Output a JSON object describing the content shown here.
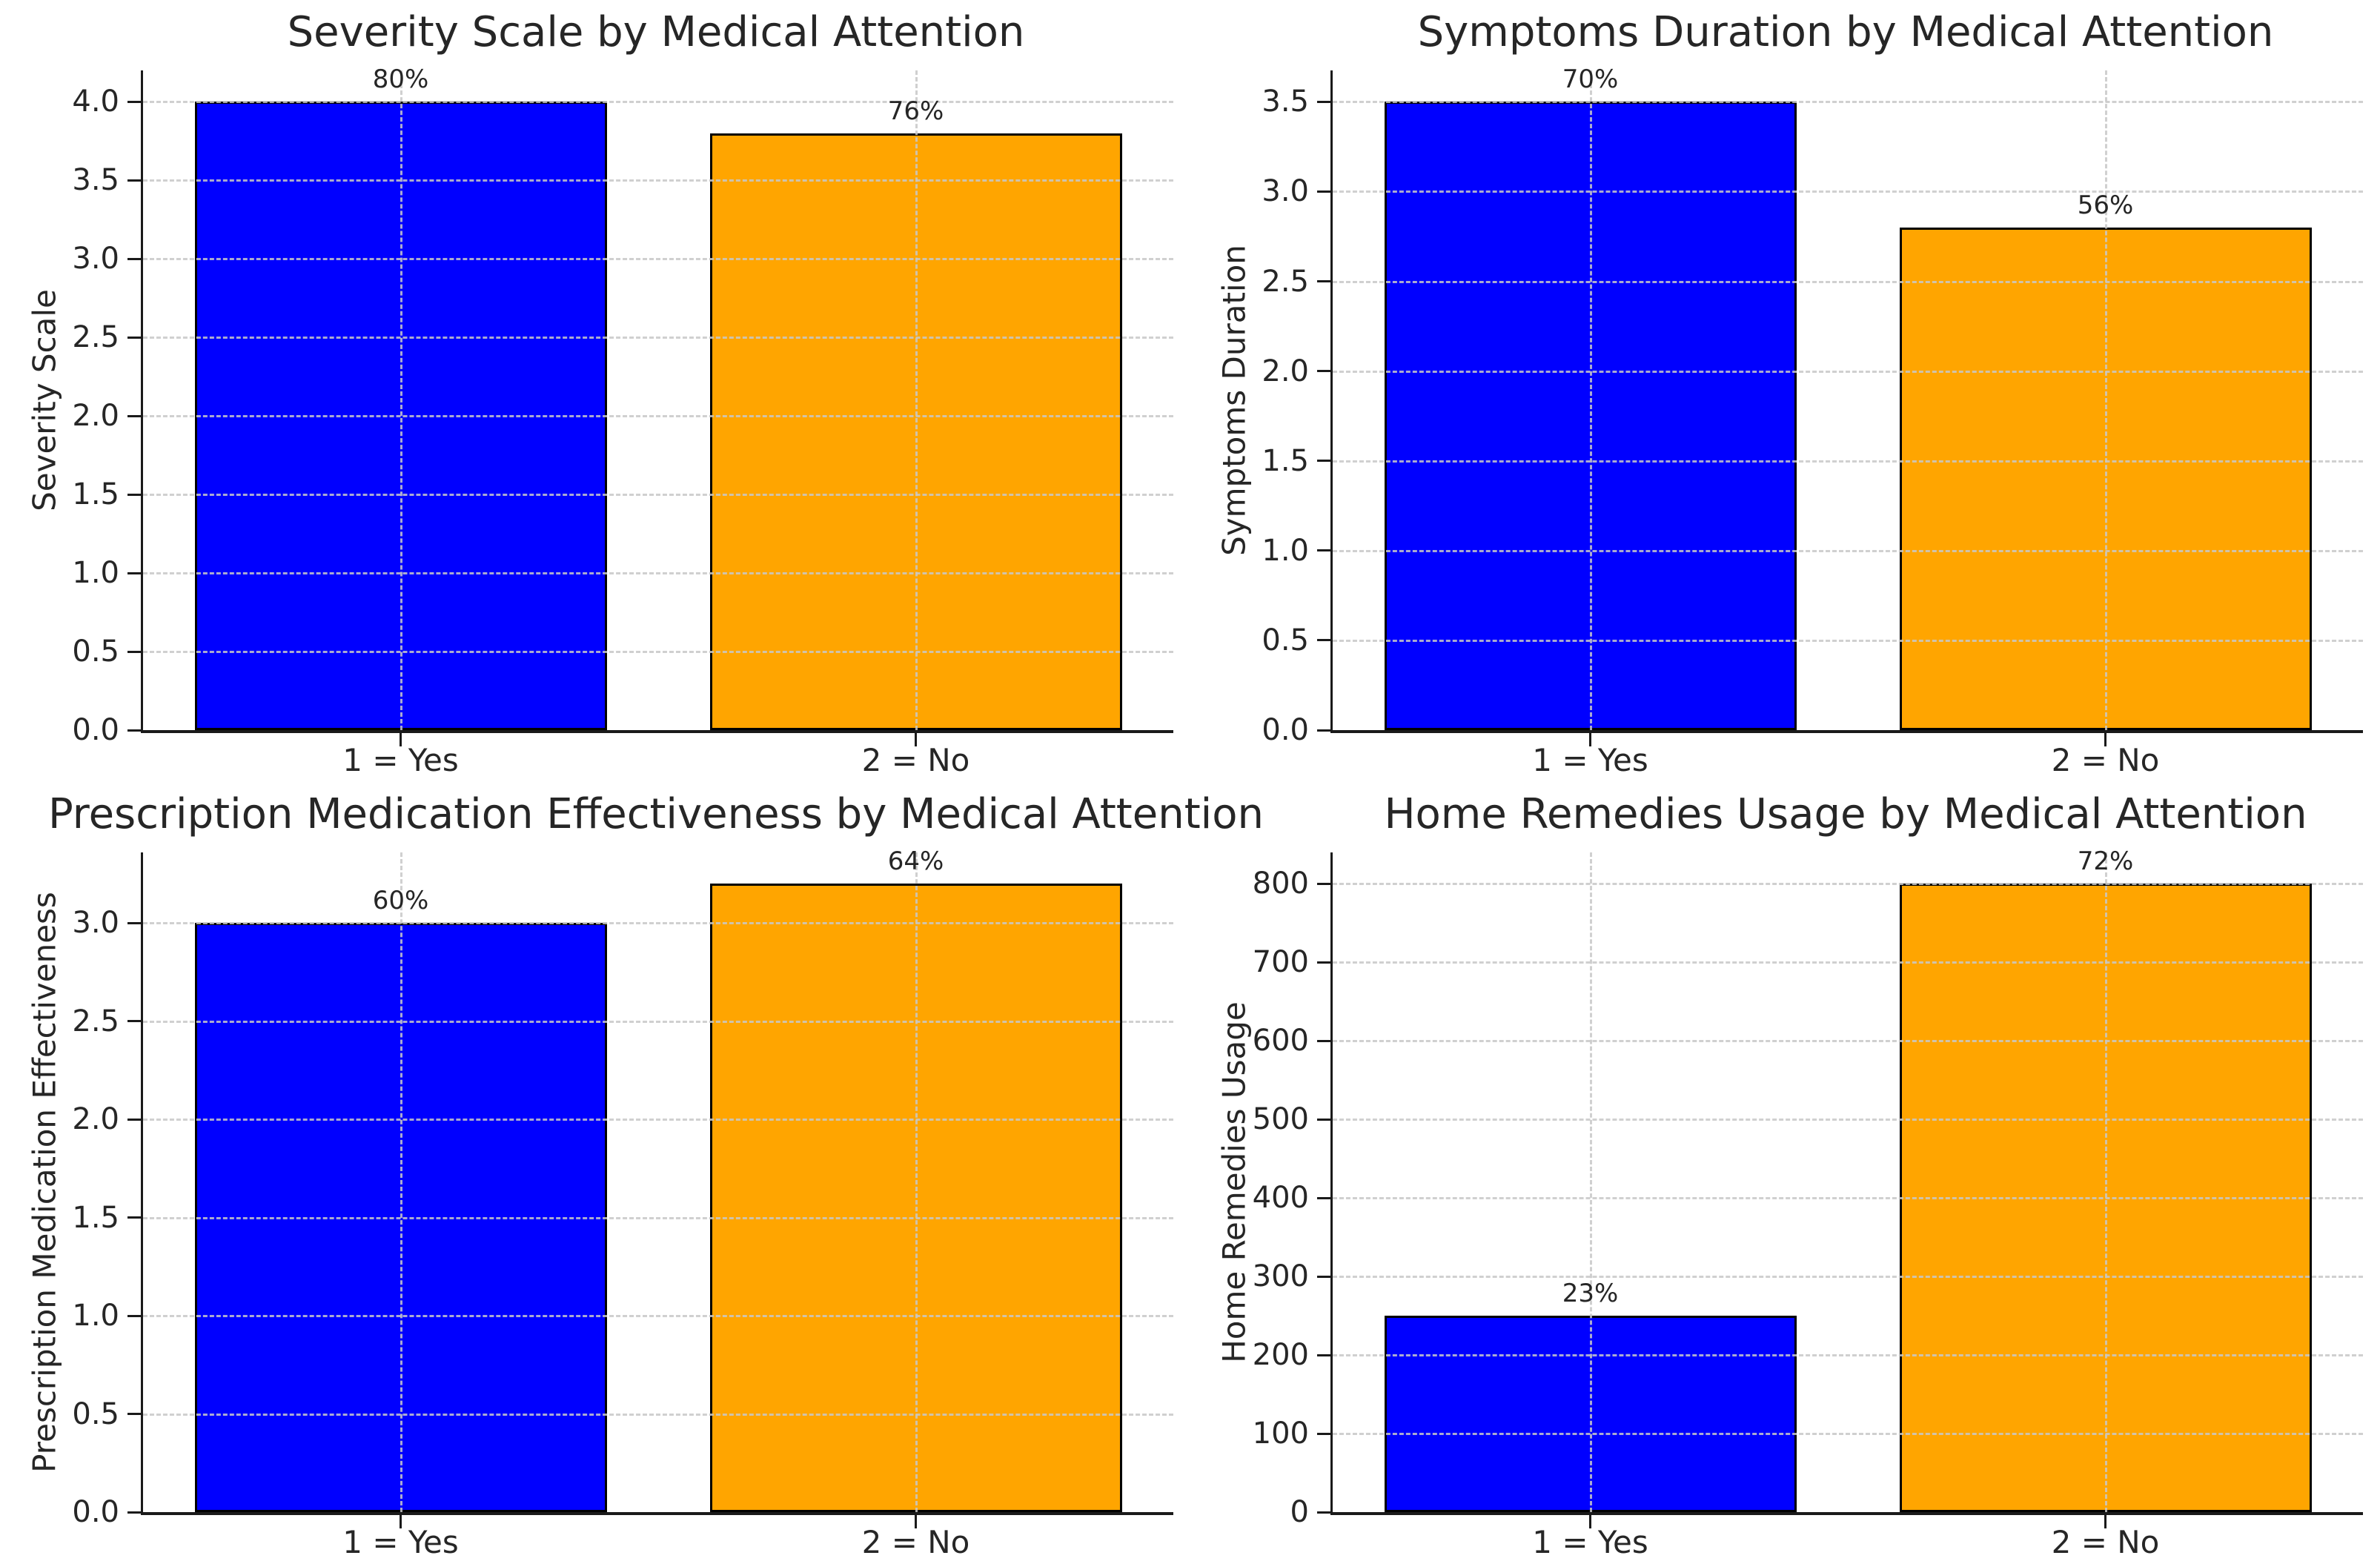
{
  "figure": {
    "background": "#ffffff",
    "grid_color": "#c8c8c8",
    "spine_color": "#1a1a1a",
    "text_color": "#262626",
    "bar_edge_color": "#000000",
    "yes_color": "#0000ff",
    "no_color": "#ffa500"
  },
  "chart_data": [
    {
      "type": "bar",
      "title": "Severity Scale by Medical Attention",
      "ylabel": "Severity Scale",
      "xlabel": "",
      "categories": [
        "1 = Yes",
        "2 = No"
      ],
      "values": [
        4.0,
        3.8
      ],
      "bar_labels": [
        "80%",
        "76%"
      ],
      "bar_colors": [
        "#0000ff",
        "#ffa500"
      ],
      "ylim": [
        0,
        4.2
      ],
      "yticks": [
        0.0,
        0.5,
        1.0,
        1.5,
        2.0,
        2.5,
        3.0,
        3.5,
        4.0
      ],
      "ytick_labels": [
        "0.0",
        "0.5",
        "1.0",
        "1.5",
        "2.0",
        "2.5",
        "3.0",
        "3.5",
        "4.0"
      ],
      "grid": "dashed",
      "legend": "none"
    },
    {
      "type": "bar",
      "title": "Symptoms Duration by Medical Attention",
      "ylabel": "Symptoms Duration",
      "xlabel": "",
      "categories": [
        "1 = Yes",
        "2 = No"
      ],
      "values": [
        3.5,
        2.8
      ],
      "bar_labels": [
        "70%",
        "56%"
      ],
      "bar_colors": [
        "#0000ff",
        "#ffa500"
      ],
      "ylim": [
        0,
        3.675
      ],
      "yticks": [
        0.0,
        0.5,
        1.0,
        1.5,
        2.0,
        2.5,
        3.0,
        3.5
      ],
      "ytick_labels": [
        "0.0",
        "0.5",
        "1.0",
        "1.5",
        "2.0",
        "2.5",
        "3.0",
        "3.5"
      ],
      "grid": "dashed",
      "legend": "none"
    },
    {
      "type": "bar",
      "title": "Prescription Medication Effectiveness by Medical Attention",
      "ylabel": "Prescription Medication Effectiveness",
      "xlabel": "",
      "categories": [
        "1 = Yes",
        "2 = No"
      ],
      "values": [
        3.0,
        3.2
      ],
      "bar_labels": [
        "60%",
        "64%"
      ],
      "bar_colors": [
        "#0000ff",
        "#ffa500"
      ],
      "ylim": [
        0,
        3.36
      ],
      "yticks": [
        0.0,
        0.5,
        1.0,
        1.5,
        2.0,
        2.5,
        3.0
      ],
      "ytick_labels": [
        "0.0",
        "0.5",
        "1.0",
        "1.5",
        "2.0",
        "2.5",
        "3.0"
      ],
      "grid": "dashed",
      "legend": "none"
    },
    {
      "type": "bar",
      "title": "Home Remedies Usage by Medical Attention",
      "ylabel": "Home Remedies Usage",
      "xlabel": "",
      "categories": [
        "1 = Yes",
        "2 = No"
      ],
      "values": [
        250,
        800
      ],
      "bar_labels": [
        "23%",
        "72%"
      ],
      "bar_colors": [
        "#0000ff",
        "#ffa500"
      ],
      "ylim": [
        0,
        840
      ],
      "yticks": [
        0,
        100,
        200,
        300,
        400,
        500,
        600,
        700,
        800
      ],
      "ytick_labels": [
        "0",
        "100",
        "200",
        "300",
        "400",
        "500",
        "600",
        "700",
        "800"
      ],
      "grid": "dashed",
      "legend": "none"
    }
  ]
}
